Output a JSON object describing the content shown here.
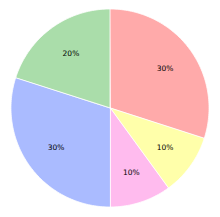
{
  "chart_data": {
    "type": "pie",
    "values": [
      30,
      10,
      10,
      30,
      20
    ],
    "value_labels": [
      "30%",
      "10%",
      "10%",
      "30%",
      "20%"
    ],
    "colors": [
      "#ffaaaa",
      "#ffffaa",
      "#ffbbee",
      "#aabbff",
      "#aaddaa"
    ],
    "data_labels": true
  }
}
